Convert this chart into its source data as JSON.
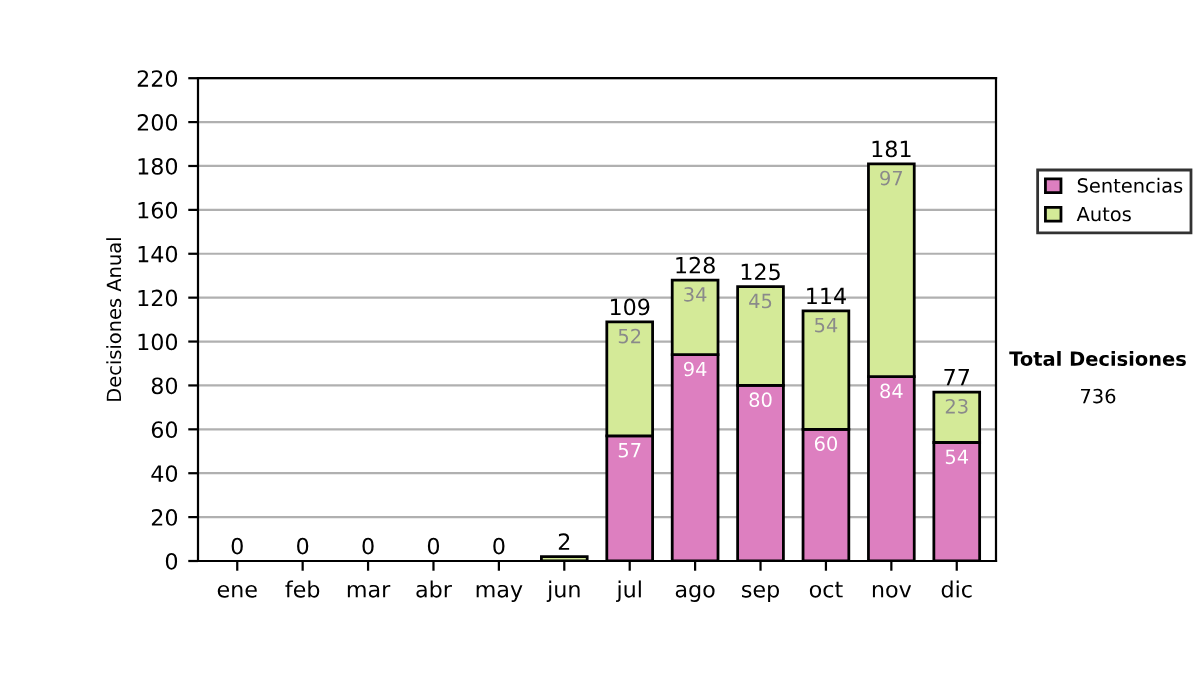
{
  "chart_data": {
    "type": "bar",
    "stacked": true,
    "ylabel": "Decisiones Anual",
    "categories": [
      "ene",
      "feb",
      "mar",
      "abr",
      "may",
      "jun",
      "jul",
      "ago",
      "sep",
      "oct",
      "nov",
      "dic"
    ],
    "series": [
      {
        "name": "Sentencias",
        "color": "#dd7fc0",
        "values": [
          0,
          0,
          0,
          0,
          0,
          0,
          57,
          94,
          80,
          60,
          84,
          54
        ],
        "value_labels": [
          null,
          null,
          null,
          null,
          null,
          null,
          "57",
          "94",
          "80",
          "60",
          "84",
          "54"
        ]
      },
      {
        "name": "Autos",
        "color": "#d4ea98",
        "values": [
          0,
          0,
          0,
          0,
          0,
          2,
          52,
          34,
          45,
          54,
          97,
          23
        ],
        "value_labels": [
          null,
          null,
          null,
          null,
          null,
          null,
          "52",
          "34",
          "45",
          "54",
          "97",
          "23"
        ]
      }
    ],
    "totals": [
      "0",
      "0",
      "0",
      "0",
      "0",
      "2",
      "109",
      "128",
      "125",
      "114",
      "181",
      "77"
    ],
    "ylim": [
      0,
      220
    ],
    "yticks": [
      0,
      20,
      40,
      60,
      80,
      100,
      120,
      140,
      160,
      180,
      200,
      220
    ],
    "grid": "y",
    "legend": "right",
    "annotations": [
      "Total Decisiones",
      "736"
    ]
  }
}
